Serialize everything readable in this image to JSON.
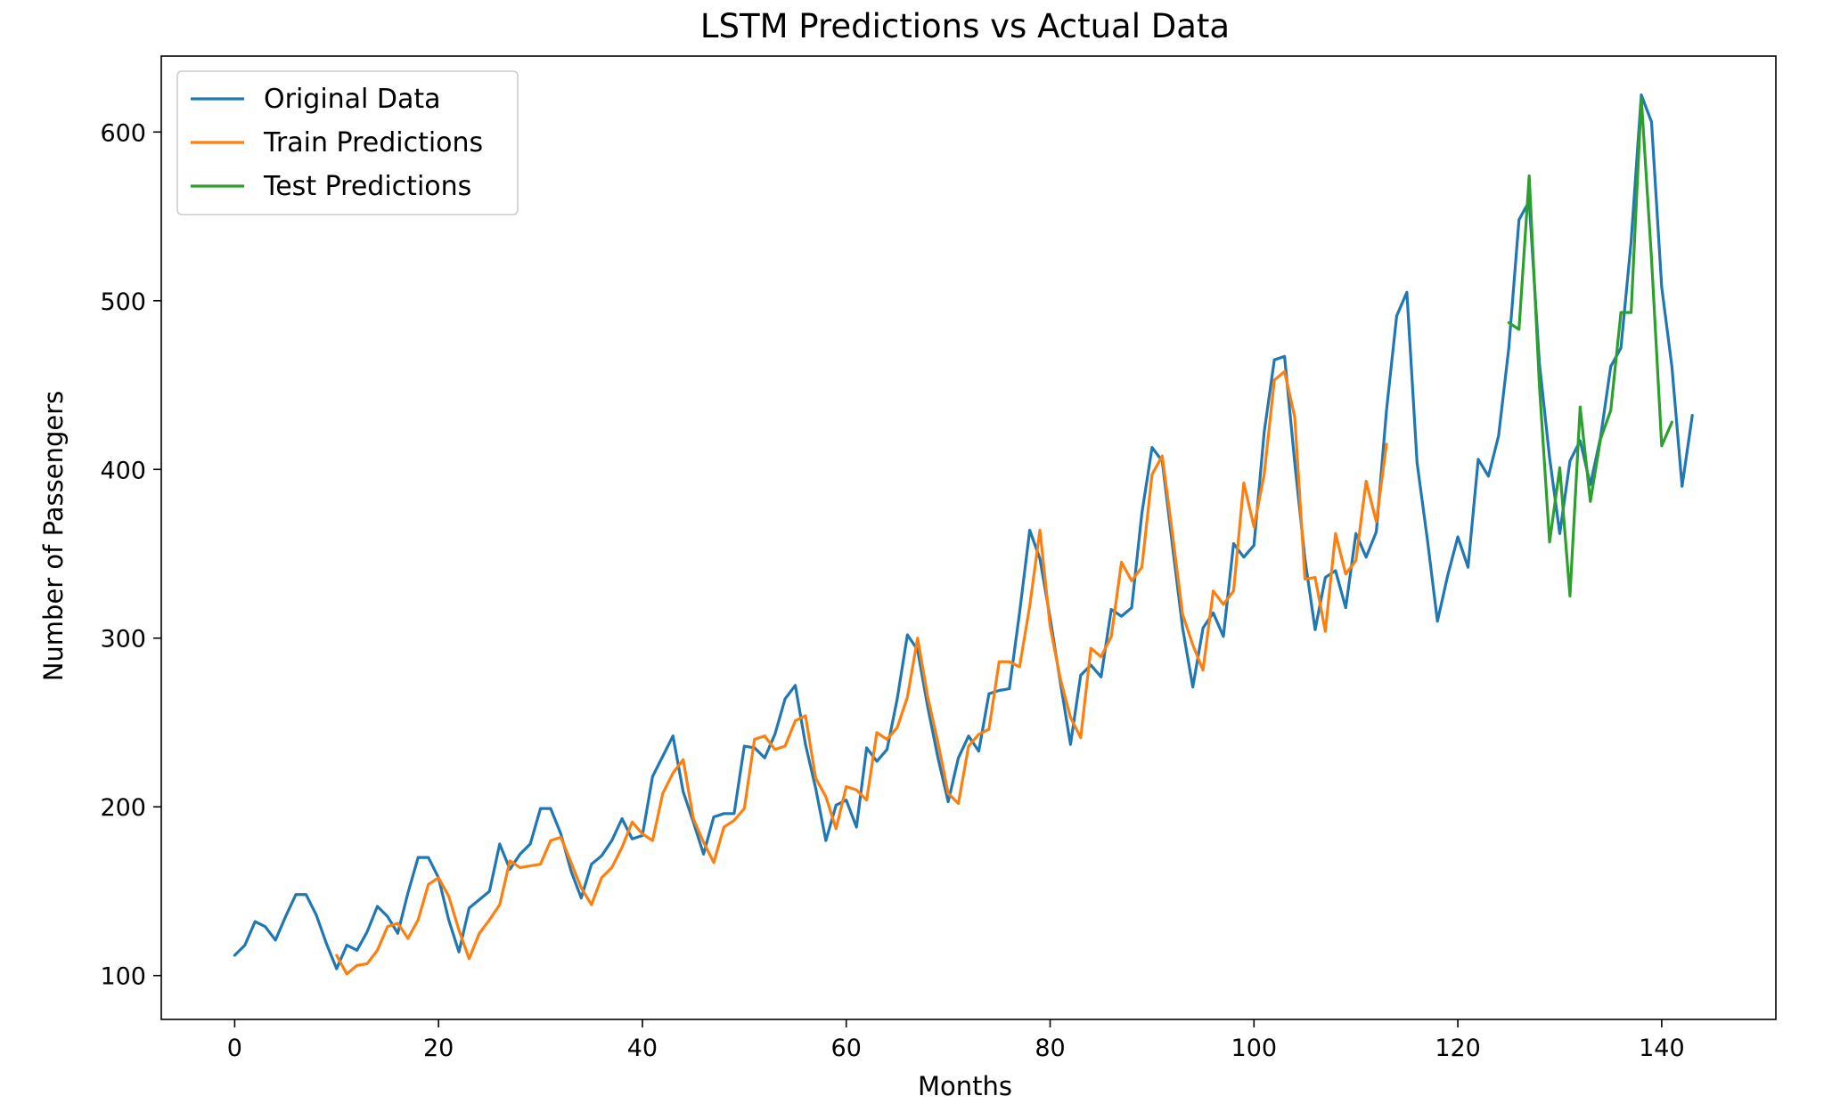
{
  "chart_data": {
    "type": "line",
    "title": "LSTM Predictions vs Actual Data",
    "xlabel": "Months",
    "ylabel": "Number of Passengers",
    "xlim": [
      -7.2,
      151.2
    ],
    "ylim": [
      74,
      645
    ],
    "xticks": [
      0,
      20,
      40,
      60,
      80,
      100,
      120,
      140
    ],
    "yticks": [
      100,
      200,
      300,
      400,
      500,
      600
    ],
    "legend_position": "top-left",
    "grid": false,
    "series": [
      {
        "name": "Original Data",
        "color": "#1f77b4",
        "x_start": 0,
        "values": [
          112,
          118,
          132,
          129,
          121,
          135,
          148,
          148,
          136,
          119,
          104,
          118,
          115,
          126,
          141,
          135,
          125,
          149,
          170,
          170,
          158,
          133,
          114,
          140,
          145,
          150,
          178,
          163,
          172,
          178,
          199,
          199,
          184,
          162,
          146,
          166,
          171,
          180,
          193,
          181,
          183,
          218,
          230,
          242,
          209,
          191,
          172,
          194,
          196,
          196,
          236,
          235,
          229,
          243,
          264,
          272,
          237,
          211,
          180,
          201,
          204,
          188,
          235,
          227,
          234,
          264,
          302,
          293,
          259,
          229,
          203,
          229,
          242,
          233,
          267,
          269,
          270,
          315,
          364,
          347,
          312,
          274,
          237,
          278,
          284,
          277,
          317,
          313,
          318,
          374,
          413,
          405,
          355,
          306,
          271,
          306,
          315,
          301,
          356,
          348,
          355,
          422,
          465,
          467,
          404,
          347,
          305,
          336,
          340,
          318,
          362,
          348,
          363,
          435,
          491,
          505,
          404,
          359,
          310,
          337,
          360,
          342,
          406,
          396,
          420,
          472,
          548,
          559,
          463,
          407,
          362,
          405,
          417,
          391,
          419,
          461,
          472,
          535,
          622,
          606,
          508,
          461,
          390,
          432
        ]
      },
      {
        "name": "Train Predictions",
        "color": "#ff7f0e",
        "x_start": 10,
        "values": [
          112,
          101,
          106,
          107,
          115,
          129,
          131,
          122,
          133,
          154,
          158,
          147,
          127,
          110,
          125,
          133,
          142,
          168,
          164,
          165,
          166,
          180,
          182,
          167,
          152,
          142,
          158,
          164,
          176,
          191,
          184,
          180,
          208,
          220,
          228,
          193,
          179,
          167,
          188,
          192,
          199,
          240,
          242,
          234,
          236,
          251,
          254,
          217,
          206,
          187,
          212,
          210,
          204,
          244,
          240,
          247,
          265,
          300,
          265,
          238,
          208,
          202,
          236,
          243,
          246,
          286,
          286,
          283,
          319,
          364,
          307,
          276,
          253,
          241,
          294,
          289,
          301,
          345,
          334,
          342,
          397,
          408,
          362,
          314,
          296,
          281,
          328,
          320,
          328,
          392,
          366,
          397,
          453,
          458,
          431,
          335,
          336,
          304,
          362,
          338,
          346,
          393,
          369,
          415
        ]
      },
      {
        "name": "Test Predictions",
        "color": "#2ca02c",
        "x_start": 125,
        "values": [
          487,
          483,
          574,
          450,
          357,
          401,
          325,
          437,
          381,
          418,
          435,
          493,
          493,
          620,
          525,
          414,
          428
        ]
      }
    ]
  }
}
